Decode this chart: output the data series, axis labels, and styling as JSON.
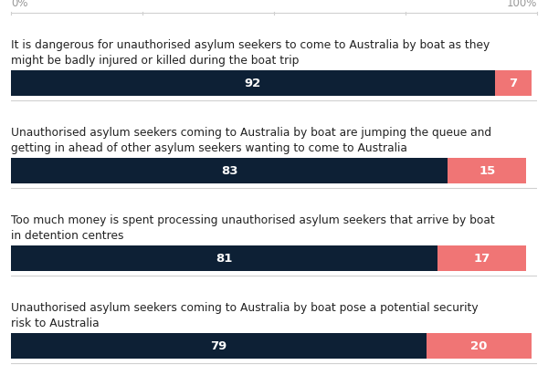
{
  "items": [
    {
      "label": "It is dangerous for unauthorised asylum seekers to come to Australia by boat as they\nmight be badly injured or killed during the boat trip",
      "agree": 92,
      "disagree": 7
    },
    {
      "label": "Unauthorised asylum seekers coming to Australia by boat are jumping the queue and\ngetting in ahead of other asylum seekers wanting to come to Australia",
      "agree": 83,
      "disagree": 15
    },
    {
      "label": "Too much money is spent processing unauthorised asylum seekers that arrive by boat\nin detention centres",
      "agree": 81,
      "disagree": 17
    },
    {
      "label": "Unauthorised asylum seekers coming to Australia by boat pose a potential security\nrisk to Australia",
      "agree": 79,
      "disagree": 20
    }
  ],
  "dark_color": "#0d2035",
  "light_color": "#f07575",
  "background_color": "#ffffff",
  "text_color": "#222222",
  "label_fontsize": 8.8,
  "value_fontsize": 9.5,
  "axis_label_color": "#999999",
  "axis_label_fontsize": 8.5,
  "bar_text_color": "#ffffff",
  "separator_color": "#d0d0d0",
  "tick_label_positions": [
    0,
    25,
    50,
    75,
    100
  ]
}
